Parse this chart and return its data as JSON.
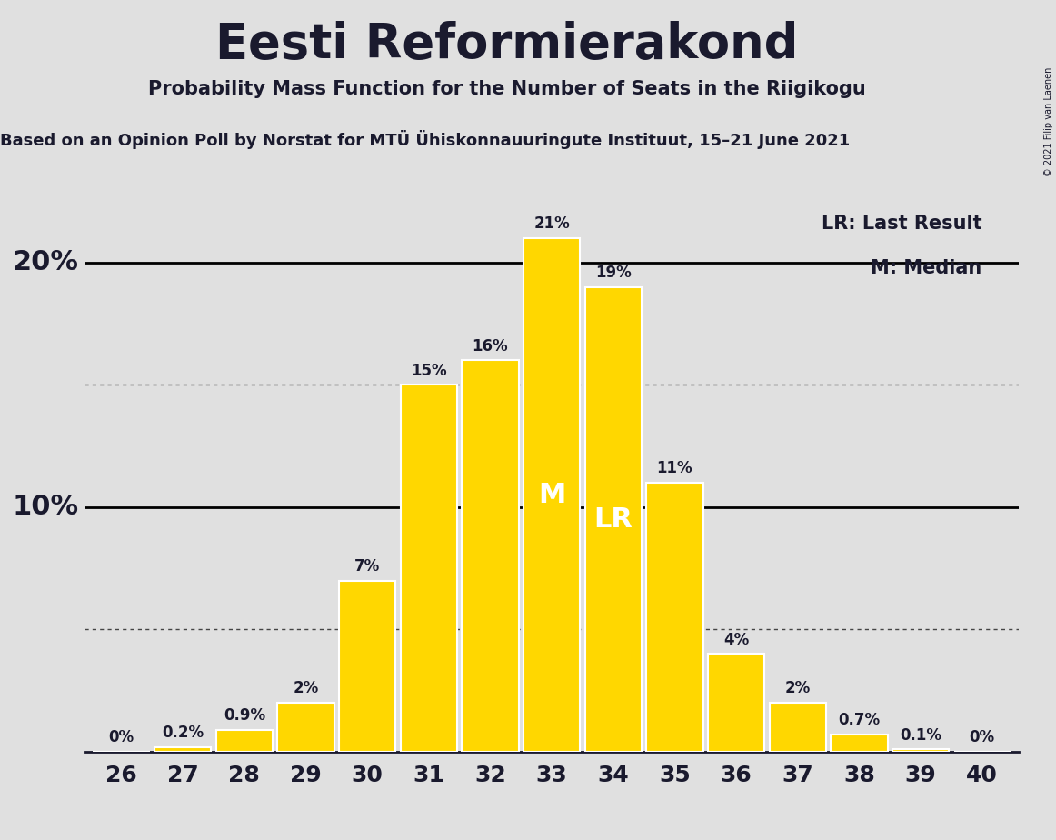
{
  "title": "Eesti Reformierakond",
  "subtitle": "Probability Mass Function for the Number of Seats in the Riigikogu",
  "source_line": "Based on an Opinion Poll by Norstat for MTÜ Ühiskonnauuringute Instituut, 15–21 June 2021",
  "copyright": "© 2021 Filip van Laenen",
  "categories": [
    26,
    27,
    28,
    29,
    30,
    31,
    32,
    33,
    34,
    35,
    36,
    37,
    38,
    39,
    40
  ],
  "values": [
    0.0,
    0.2,
    0.9,
    2.0,
    7.0,
    15.0,
    16.0,
    21.0,
    19.0,
    11.0,
    4.0,
    2.0,
    0.7,
    0.1,
    0.0
  ],
  "labels": [
    "0%",
    "0.2%",
    "0.9%",
    "2%",
    "7%",
    "15%",
    "16%",
    "21%",
    "19%",
    "11%",
    "4%",
    "2%",
    "0.7%",
    "0.1%",
    "0%"
  ],
  "bar_color": "#FFD700",
  "bar_edge_color": "#FFFFFF",
  "background_color": "#E0E0E0",
  "text_color": "#1a1a2e",
  "median_seat": 33,
  "last_result_seat": 34,
  "ylim": [
    0,
    23
  ],
  "solid_gridlines": [
    10.0,
    20.0
  ],
  "dotted_gridlines": [
    5.0,
    15.0
  ],
  "legend_lr": "LR: Last Result",
  "legend_m": "M: Median",
  "title_fontsize": 38,
  "subtitle_fontsize": 15,
  "source_fontsize": 13,
  "ytick_fontsize": 22,
  "xtick_fontsize": 18,
  "label_fontsize": 12,
  "legend_fontsize": 15,
  "inside_label_fontsize": 22
}
